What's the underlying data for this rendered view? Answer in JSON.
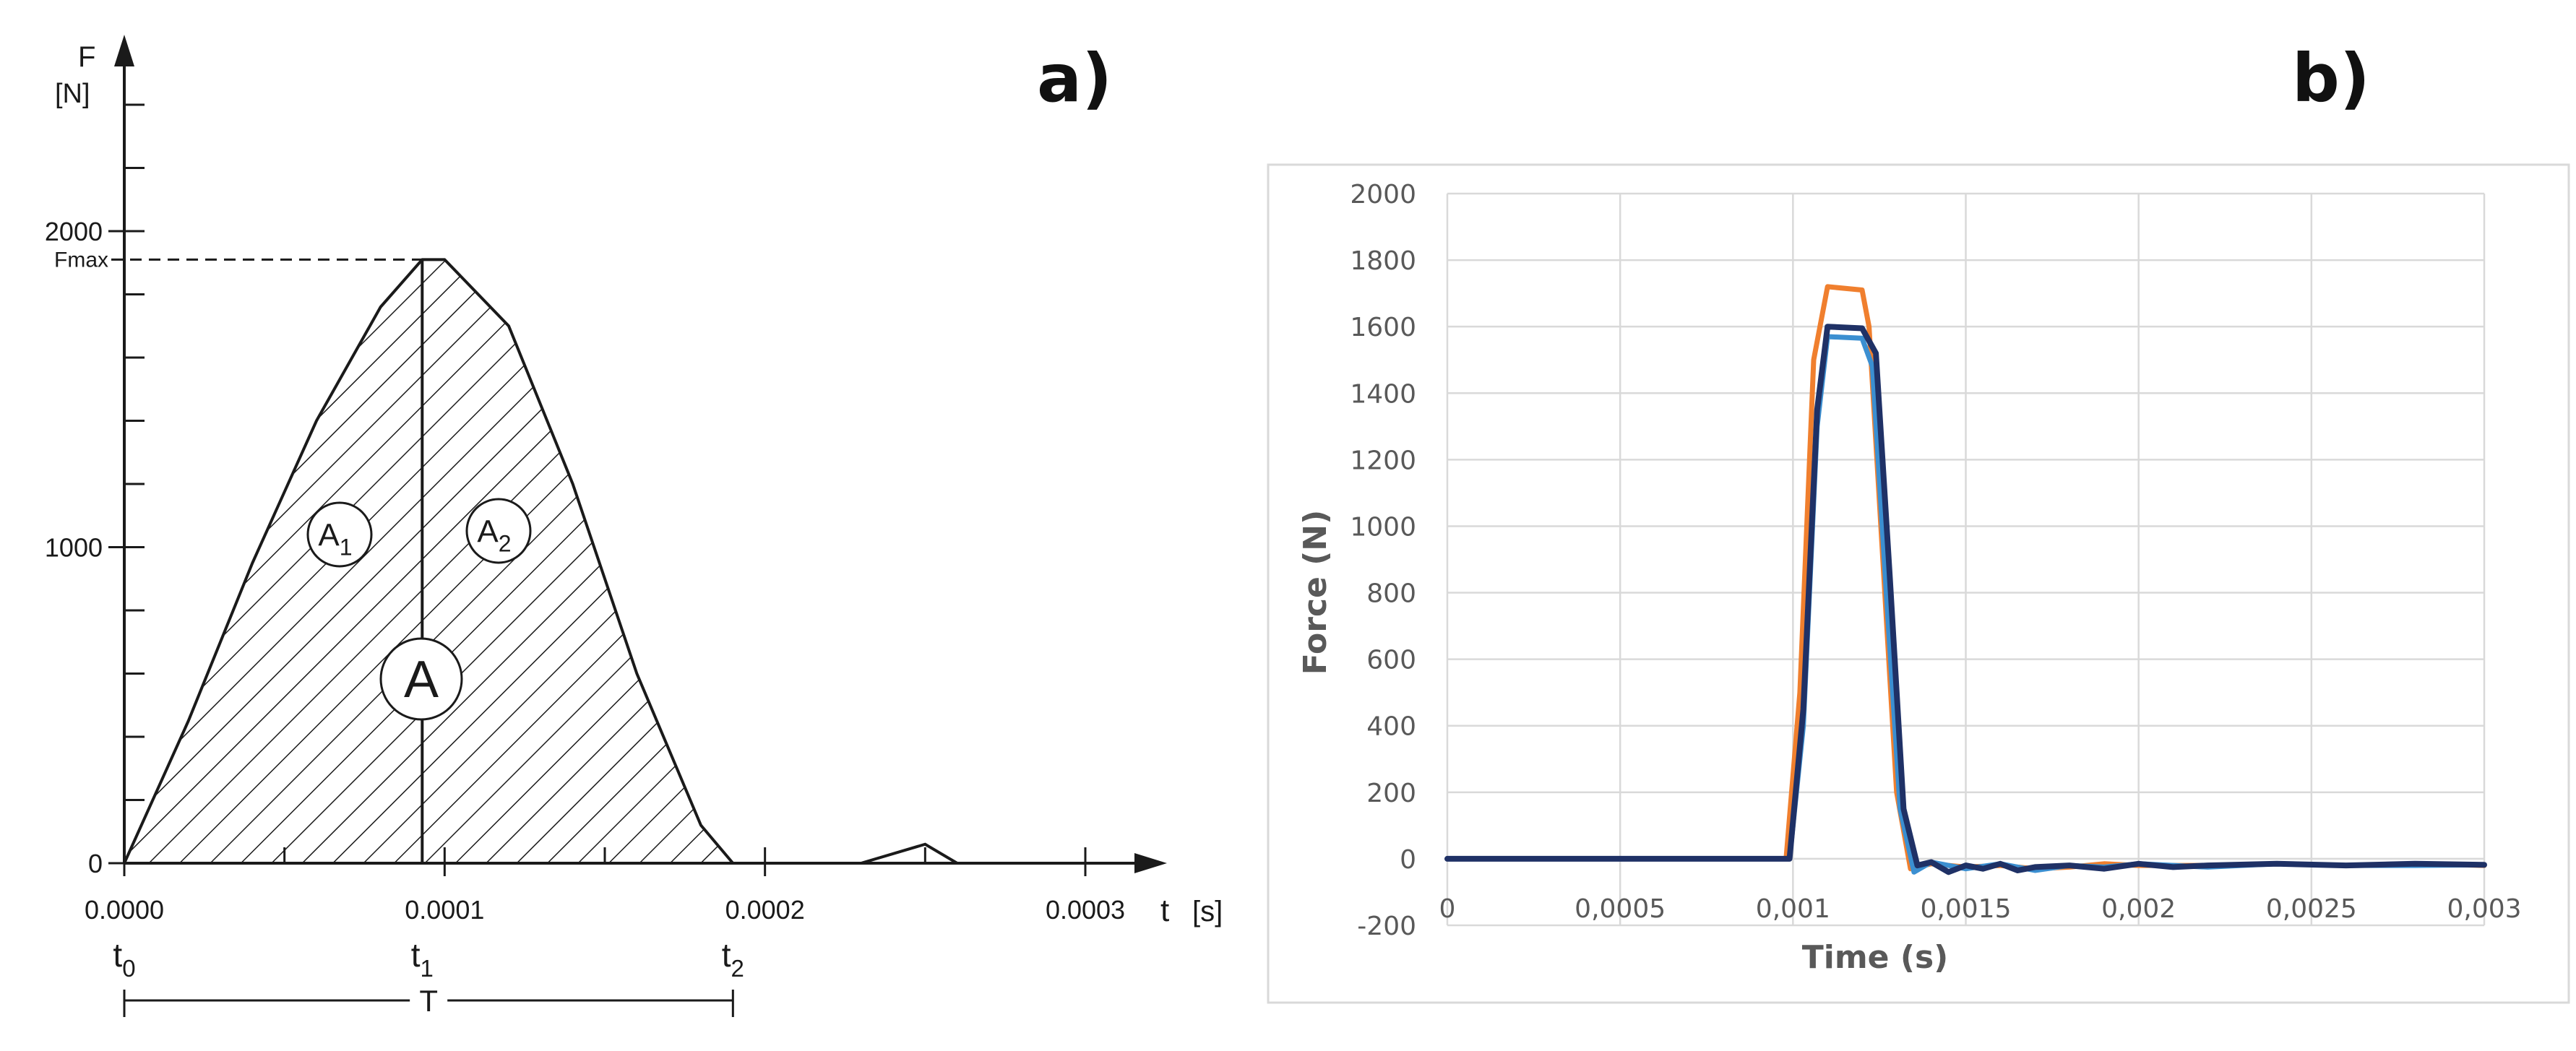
{
  "panels": {
    "a": {
      "label": "a)"
    },
    "b": {
      "label": "b)"
    }
  },
  "colors": {
    "sketch_ink": "#1a1a1a",
    "grid": "#d9d9d9",
    "series_orange": "#f07f2e",
    "series_lightblue": "#3b8fd1",
    "series_navy": "#1f3166"
  },
  "chart_data": [
    {
      "type": "area",
      "panel": "a",
      "ylabel_line1": "F",
      "ylabel_line2": "[N]",
      "xlabel": "t",
      "xunit": "[s]",
      "yticks": [
        {
          "value": 0,
          "label": "0"
        },
        {
          "value": 1000,
          "label": "1000"
        },
        {
          "value": 2000,
          "label": "2000"
        }
      ],
      "xticks": [
        {
          "value": 0.0,
          "label": "0.0000"
        },
        {
          "value": 0.0001,
          "label": "0.0001"
        },
        {
          "value": 0.0002,
          "label": "0.0002"
        },
        {
          "value": 0.0003,
          "label": "0.0003"
        }
      ],
      "fmax_label": "Fmax",
      "fmax_value": 1910,
      "xlim": [
        0,
        0.00033
      ],
      "ylim": [
        0,
        2600
      ],
      "pulse": {
        "x": [
          0.0,
          2e-05,
          4e-05,
          6e-05,
          8e-05,
          9.3e-05,
          0.0001,
          0.00012,
          0.00014,
          0.00016,
          0.00018,
          0.00019
        ],
        "y": [
          0,
          450,
          950,
          1400,
          1760,
          1910,
          1910,
          1700,
          1200,
          600,
          120,
          0
        ]
      },
      "bump": {
        "x": [
          0.00023,
          0.00025,
          0.00026
        ],
        "y": [
          0,
          60,
          0
        ]
      },
      "time_markers": [
        {
          "base": "t",
          "sub": "0",
          "value": 0.0
        },
        {
          "base": "t",
          "sub": "1",
          "value": 9.3e-05
        },
        {
          "base": "t",
          "sub": "2",
          "value": 0.00019
        }
      ],
      "period_label": "T",
      "areas": [
        {
          "base": "A",
          "sub": "1"
        },
        {
          "base": "A",
          "sub": "2"
        },
        {
          "base": "A",
          "sub": ""
        }
      ]
    },
    {
      "type": "line",
      "panel": "b",
      "xlabel": "Time (s)",
      "ylabel": "Force (N)",
      "xlim": [
        0,
        0.003
      ],
      "ylim": [
        -200,
        2000
      ],
      "xticks": [
        {
          "value": 0,
          "label": "0"
        },
        {
          "value": 0.0005,
          "label": "0,0005"
        },
        {
          "value": 0.001,
          "label": "0,001"
        },
        {
          "value": 0.0015,
          "label": "0,0015"
        },
        {
          "value": 0.002,
          "label": "0,002"
        },
        {
          "value": 0.0025,
          "label": "0,0025"
        },
        {
          "value": 0.003,
          "label": "0,003"
        }
      ],
      "yticks": [
        {
          "value": -200,
          "label": "-200"
        },
        {
          "value": 0,
          "label": "0"
        },
        {
          "value": 200,
          "label": "200"
        },
        {
          "value": 400,
          "label": "400"
        },
        {
          "value": 600,
          "label": "600"
        },
        {
          "value": 800,
          "label": "800"
        },
        {
          "value": 1000,
          "label": "1000"
        },
        {
          "value": 1200,
          "label": "1200"
        },
        {
          "value": 1400,
          "label": "1400"
        },
        {
          "value": 1600,
          "label": "1600"
        },
        {
          "value": 1800,
          "label": "1800"
        },
        {
          "value": 2000,
          "label": "2000"
        }
      ],
      "grid": true,
      "legend": "none",
      "series": [
        {
          "color": "#f07f2e",
          "x": [
            0,
            0.00098,
            0.00102,
            0.00106,
            0.0011,
            0.0012,
            0.00122,
            0.00126,
            0.0013,
            0.00134,
            0.0014,
            0.0015,
            0.0016,
            0.0017,
            0.0018,
            0.0019,
            0.002,
            0.0022,
            0.0024,
            0.0026,
            0.0028,
            0.003
          ],
          "y": [
            0,
            0,
            500,
            1500,
            1720,
            1710,
            1600,
            900,
            200,
            -30,
            -15,
            -25,
            -20,
            -30,
            -25,
            -15,
            -20,
            -20,
            -15,
            -20,
            -15,
            -20
          ]
        },
        {
          "color": "#3b8fd1",
          "x": [
            0,
            0.00099,
            0.00103,
            0.00107,
            0.0011,
            0.0012,
            0.00123,
            0.00127,
            0.00131,
            0.00135,
            0.0014,
            0.0015,
            0.0016,
            0.0017,
            0.0018,
            0.0019,
            0.002,
            0.0022,
            0.0024,
            0.0026,
            0.0028,
            0.003
          ],
          "y": [
            0,
            0,
            400,
            1300,
            1570,
            1565,
            1480,
            800,
            150,
            -40,
            -10,
            -30,
            -15,
            -35,
            -20,
            -25,
            -15,
            -25,
            -15,
            -20,
            -20,
            -18
          ]
        },
        {
          "color": "#1f3166",
          "x": [
            0,
            0.00099,
            0.00103,
            0.00107,
            0.0011,
            0.0012,
            0.00124,
            0.00128,
            0.00132,
            0.00136,
            0.0014,
            0.00145,
            0.0015,
            0.00155,
            0.0016,
            0.00165,
            0.0017,
            0.0018,
            0.0019,
            0.002,
            0.0021,
            0.0022,
            0.0024,
            0.0026,
            0.0028,
            0.003
          ],
          "y": [
            0,
            0,
            450,
            1350,
            1600,
            1595,
            1520,
            850,
            150,
            -20,
            -10,
            -40,
            -20,
            -30,
            -15,
            -35,
            -25,
            -20,
            -30,
            -15,
            -25,
            -20,
            -15,
            -20,
            -15,
            -18
          ]
        }
      ]
    }
  ]
}
